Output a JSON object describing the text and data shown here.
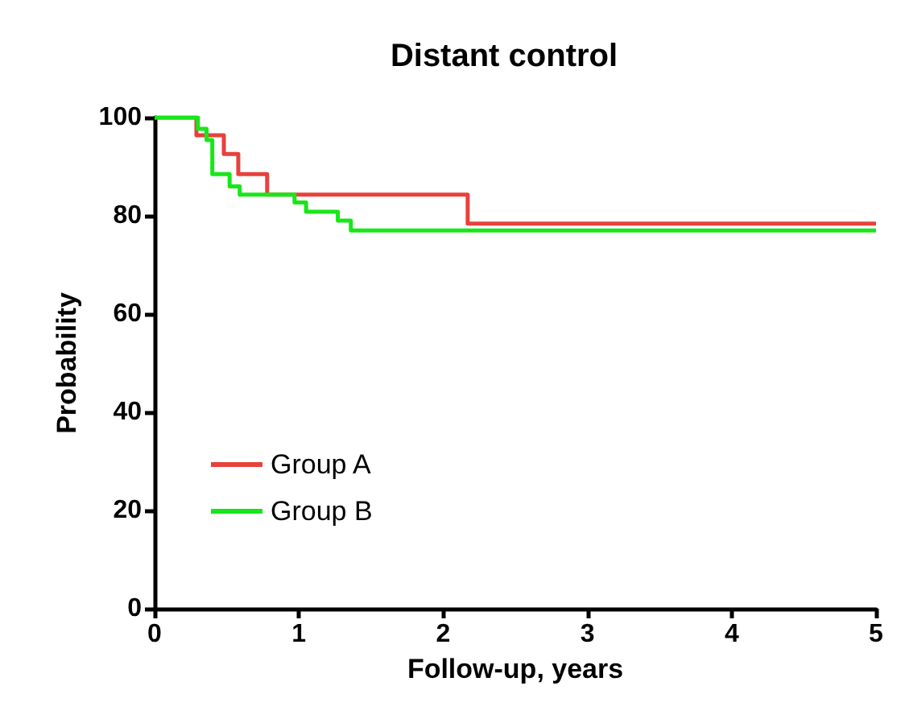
{
  "chart_data": {
    "type": "step",
    "title": "Distant control",
    "xlabel": "Follow-up, years",
    "ylabel": "Probability",
    "series": [
      {
        "name": "Group A",
        "color": "#e8413c",
        "x": [
          0,
          0.29,
          0.48,
          0.58,
          0.78,
          2.17,
          5
        ],
        "values": [
          100,
          96.4,
          92.6,
          88.5,
          84.3,
          78.4,
          78.4
        ]
      },
      {
        "name": "Group B",
        "color": "#19e619",
        "x": [
          0,
          0.3,
          0.36,
          0.4,
          0.52,
          0.59,
          0.97,
          1.05,
          1.27,
          1.36,
          5
        ],
        "values": [
          100,
          97.7,
          95.4,
          88.5,
          86,
          84.3,
          82.7,
          80.8,
          79,
          77,
          77
        ]
      }
    ],
    "xlim": [
      0,
      5
    ],
    "xticks": [
      0,
      1,
      2,
      3,
      4,
      5
    ],
    "ylim": [
      0,
      100
    ],
    "yticks": [
      0,
      20,
      40,
      60,
      80,
      100
    ],
    "grid": false,
    "legend": "bottom left",
    "marker": "none",
    "line_style": "solid"
  }
}
